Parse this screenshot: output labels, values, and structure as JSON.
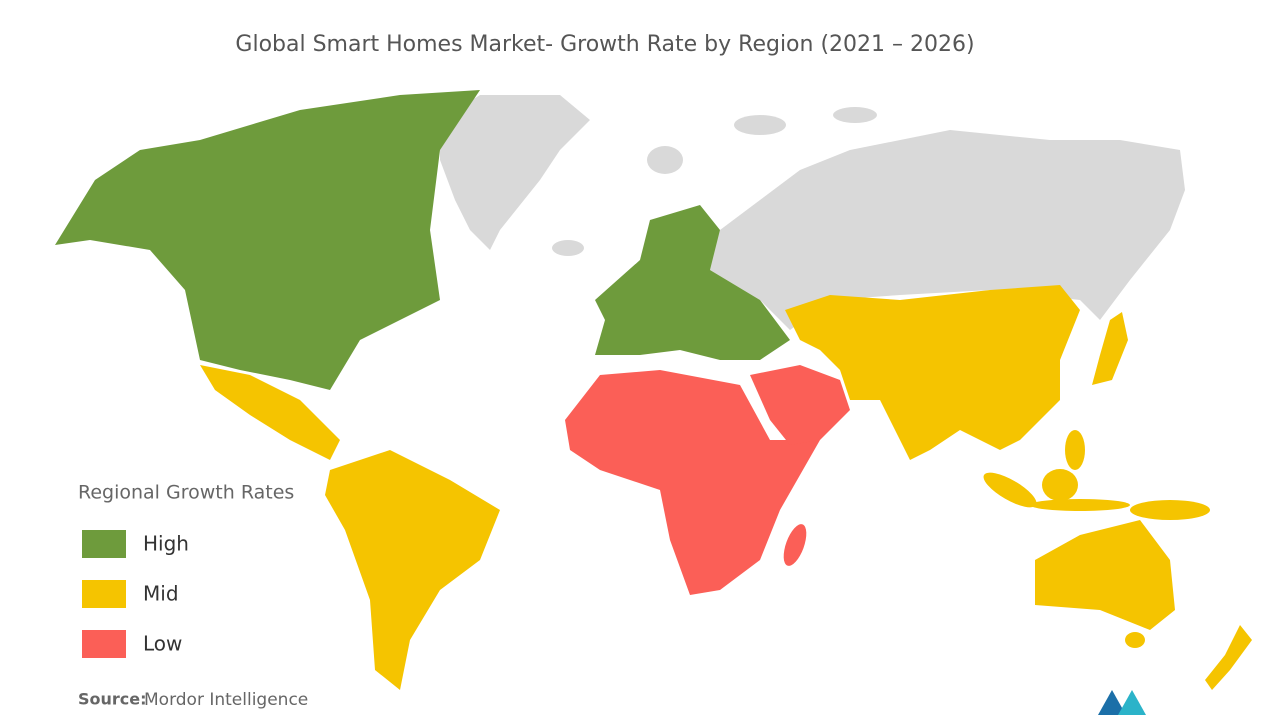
{
  "title": "Global Smart Homes Market- Growth Rate by Region (2021 – 2026)",
  "legend": {
    "title": "Regional Growth Rates",
    "items": [
      {
        "label": "High",
        "color": "#6e9b3c"
      },
      {
        "label": "Mid",
        "color": "#f5c400"
      },
      {
        "label": "Low",
        "color": "#fb5f57"
      }
    ]
  },
  "source": {
    "label": "Source:",
    "text": "Mordor Intelligence"
  }
}
